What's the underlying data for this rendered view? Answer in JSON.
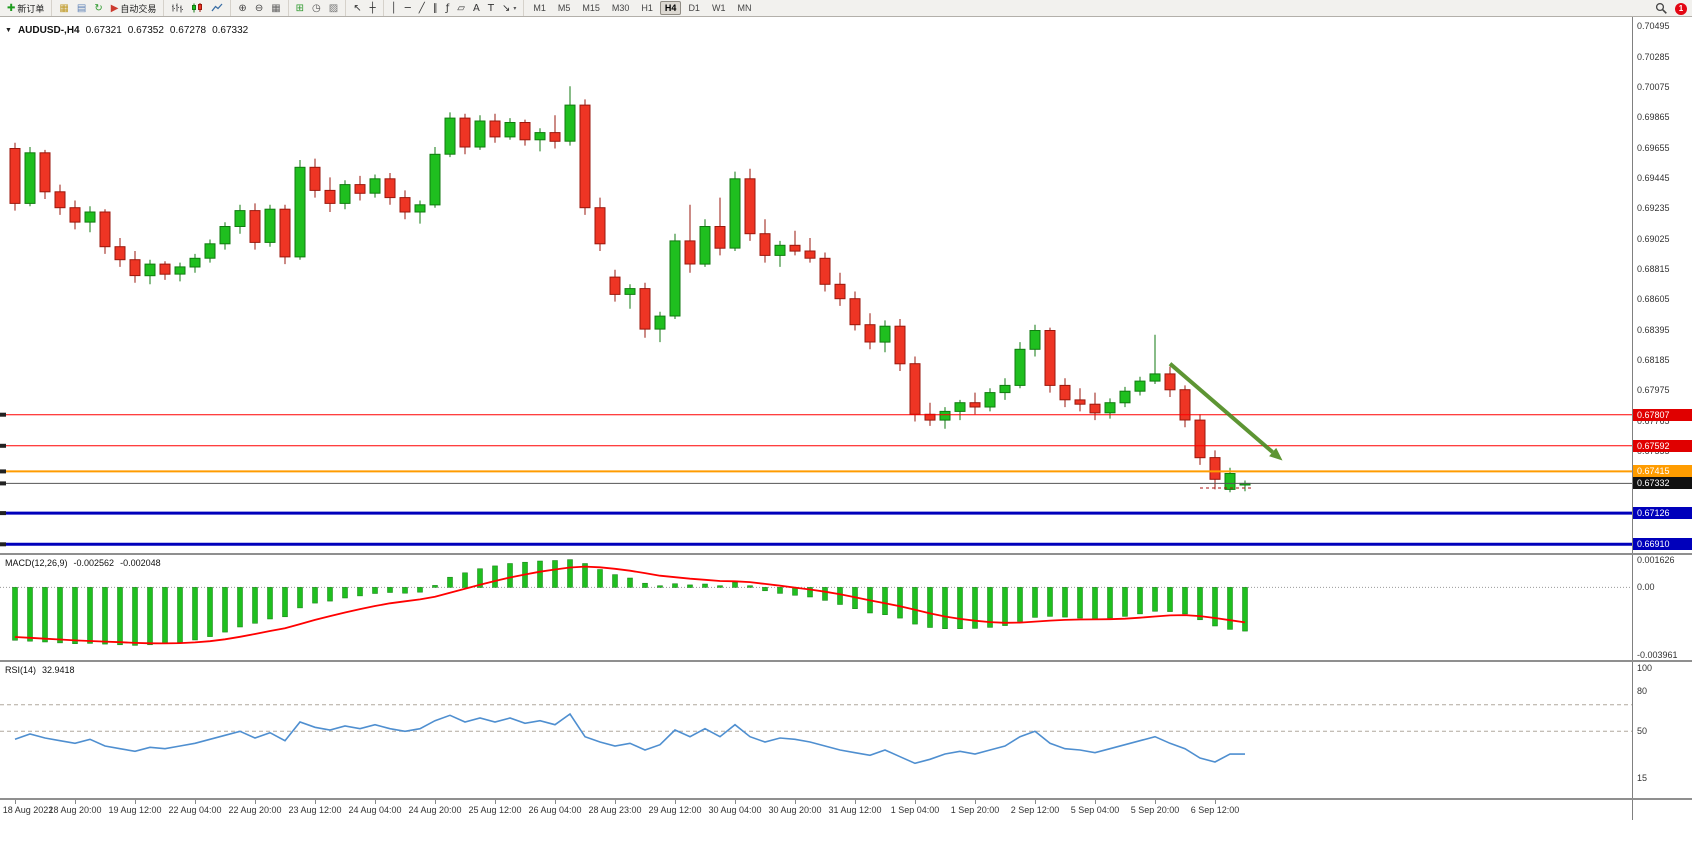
{
  "symbol_header": {
    "symbol": "AUDUSD-,H4",
    "open": "0.67321",
    "high": "0.67352",
    "low": "0.67278",
    "close": "0.67332"
  },
  "toolbar": {
    "badge": "1",
    "timeframes": [
      {
        "label": "M1",
        "active": false
      },
      {
        "label": "M5",
        "active": false
      },
      {
        "label": "M15",
        "active": false
      },
      {
        "label": "M30",
        "active": false
      },
      {
        "label": "H1",
        "active": false
      },
      {
        "label": "H4",
        "active": true
      },
      {
        "label": "D1",
        "active": false
      },
      {
        "label": "W1",
        "active": false
      },
      {
        "label": "MN",
        "active": false
      }
    ],
    "groups": [
      {
        "items": [
          {
            "name": "new-order",
            "glyph": "✚",
            "glyph_color": "#1d9b1d",
            "label": "新订单"
          }
        ]
      },
      {
        "items": [
          {
            "name": "charts",
            "glyph": "▦",
            "glyph_color": "#c09a27"
          },
          {
            "name": "profiles",
            "glyph": "▤",
            "glyph_color": "#5b7fb5"
          },
          {
            "name": "refresh",
            "glyph": "↻",
            "glyph_color": "#2f9a2f"
          },
          {
            "name": "autotrade",
            "glyph": "▶",
            "glyph_color": "#cc3b2f",
            "label": "自动交易"
          }
        ]
      },
      {
        "items": [
          {
            "name": "bar-chart-mode",
            "icon": "bars"
          },
          {
            "name": "candlestick-mode",
            "icon": "candles"
          },
          {
            "name": "line-chart-mode",
            "icon": "line"
          }
        ]
      },
      {
        "items": [
          {
            "name": "zoom-in",
            "glyph": "⊕",
            "glyph_color": "#444444"
          },
          {
            "name": "zoom-out",
            "glyph": "⊖",
            "glyph_color": "#444444"
          },
          {
            "name": "tile-windows",
            "glyph": "▦",
            "glyph_color": "#666666"
          }
        ]
      },
      {
        "items": [
          {
            "name": "indicators",
            "glyph": "⊞",
            "glyph_color": "#2f9a2f"
          },
          {
            "name": "periods",
            "glyph": "◷",
            "glyph_color": "#555555"
          },
          {
            "name": "templates",
            "glyph": "▨",
            "glyph_color": "#777777"
          }
        ]
      },
      {
        "items": [
          {
            "name": "cursor",
            "glyph": "↖",
            "glyph_color": "#333333"
          },
          {
            "name": "crosshair",
            "glyph": "┼",
            "glyph_color": "#333333"
          }
        ]
      },
      {
        "items": [
          {
            "name": "vertical-line",
            "glyph": "│",
            "glyph_color": "#333333"
          },
          {
            "name": "horizontal-line",
            "glyph": "─",
            "glyph_color": "#333333"
          },
          {
            "name": "trendline",
            "glyph": "╱",
            "glyph_color": "#333333"
          },
          {
            "name": "channel",
            "glyph": "∥",
            "glyph_color": "#333333"
          },
          {
            "name": "fibonacci",
            "glyph": "ƒ",
            "glyph_color": "#333333"
          },
          {
            "name": "shapes",
            "glyph": "▱",
            "glyph_color": "#333333"
          },
          {
            "name": "text",
            "glyph": "A",
            "glyph_color": "#333333"
          },
          {
            "name": "text-label",
            "glyph": "T",
            "glyph_color": "#333333"
          },
          {
            "name": "arrows-tool",
            "glyph": "↘",
            "glyph_color": "#333333",
            "caret": true
          }
        ]
      }
    ]
  },
  "colors": {
    "bull": "#1fbf1f",
    "bull_dark": "#117a11",
    "bear": "#ee3524",
    "bear_dark": "#9a170c",
    "macd_hist": "#1fbf1f",
    "macd_signal": "#ff0000",
    "rsi_line": "#4f8fd0",
    "level_red": "#ff0000",
    "level_orange": "#ff9c00",
    "level_blue": "#0000bb",
    "current_black": "#111111"
  },
  "chart_data": [
    {
      "type": "candlestick",
      "title": "AUDUSD-,H4",
      "ylim": [
        0.6685,
        0.7056
      ],
      "y_ticks": [
        0.70495,
        0.70285,
        0.70075,
        0.69865,
        0.69655,
        0.69445,
        0.69235,
        0.69025,
        0.68815,
        0.68605,
        0.68395,
        0.68185,
        0.67975,
        0.67765,
        0.67555
      ],
      "x_labels": [
        "18 Aug 2022",
        "18 Aug 20:00",
        "19 Aug 12:00",
        "22 Aug 04:00",
        "22 Aug 20:00",
        "23 Aug 12:00",
        "24 Aug 04:00",
        "24 Aug 20:00",
        "25 Aug 12:00",
        "26 Aug 04:00",
        "28 Aug 23:00",
        "29 Aug 12:00",
        "30 Aug 04:00",
        "30 Aug 20:00",
        "31 Aug 12:00",
        "1 Sep 04:00",
        "1 Sep 20:00",
        "2 Sep 12:00",
        "5 Sep 04:00",
        "5 Sep 20:00",
        "6 Sep 12:00"
      ],
      "candles": [
        [
          0.6965,
          0.6969,
          0.6922,
          0.6927
        ],
        [
          0.6927,
          0.6966,
          0.6925,
          0.6962
        ],
        [
          0.6962,
          0.6964,
          0.693,
          0.6935
        ],
        [
          0.6935,
          0.694,
          0.6919,
          0.6924
        ],
        [
          0.6924,
          0.6929,
          0.6909,
          0.6914
        ],
        [
          0.6914,
          0.6925,
          0.6907,
          0.6921
        ],
        [
          0.6921,
          0.6923,
          0.6892,
          0.6897
        ],
        [
          0.6897,
          0.6903,
          0.6883,
          0.6888
        ],
        [
          0.6888,
          0.6894,
          0.6872,
          0.6877
        ],
        [
          0.6877,
          0.6888,
          0.6871,
          0.6885
        ],
        [
          0.6885,
          0.6887,
          0.6874,
          0.6878
        ],
        [
          0.6878,
          0.6886,
          0.6873,
          0.6883
        ],
        [
          0.6883,
          0.6892,
          0.6879,
          0.6889
        ],
        [
          0.6889,
          0.6902,
          0.6886,
          0.6899
        ],
        [
          0.6899,
          0.6914,
          0.6895,
          0.6911
        ],
        [
          0.6911,
          0.6926,
          0.6906,
          0.6922
        ],
        [
          0.6922,
          0.6927,
          0.6895,
          0.69
        ],
        [
          0.69,
          0.6926,
          0.6897,
          0.6923
        ],
        [
          0.6923,
          0.6926,
          0.6885,
          0.689
        ],
        [
          0.689,
          0.6957,
          0.6888,
          0.6952
        ],
        [
          0.6952,
          0.6958,
          0.6931,
          0.6936
        ],
        [
          0.6936,
          0.6945,
          0.6921,
          0.6927
        ],
        [
          0.6927,
          0.6943,
          0.6923,
          0.694
        ],
        [
          0.694,
          0.6946,
          0.6929,
          0.6934
        ],
        [
          0.6934,
          0.6947,
          0.6931,
          0.6944
        ],
        [
          0.6944,
          0.6948,
          0.6926,
          0.6931
        ],
        [
          0.6931,
          0.6936,
          0.6916,
          0.6921
        ],
        [
          0.6921,
          0.6929,
          0.6913,
          0.6926
        ],
        [
          0.6926,
          0.6966,
          0.6924,
          0.6961
        ],
        [
          0.6961,
          0.699,
          0.6959,
          0.6986
        ],
        [
          0.6986,
          0.6989,
          0.6961,
          0.6966
        ],
        [
          0.6966,
          0.6988,
          0.6964,
          0.6984
        ],
        [
          0.6984,
          0.6989,
          0.6969,
          0.6973
        ],
        [
          0.6973,
          0.6986,
          0.6971,
          0.6983
        ],
        [
          0.6983,
          0.6985,
          0.6967,
          0.6971
        ],
        [
          0.6971,
          0.6979,
          0.6963,
          0.6976
        ],
        [
          0.6976,
          0.6988,
          0.6965,
          0.697
        ],
        [
          0.697,
          0.7008,
          0.6967,
          0.6995
        ],
        [
          0.6995,
          0.6999,
          0.6919,
          0.6924
        ],
        [
          0.6924,
          0.6931,
          0.6894,
          0.6899
        ],
        [
          0.6876,
          0.6881,
          0.6859,
          0.6864
        ],
        [
          0.6864,
          0.6871,
          0.6854,
          0.6868
        ],
        [
          0.6868,
          0.6872,
          0.6834,
          0.684
        ],
        [
          0.684,
          0.6852,
          0.6831,
          0.6849
        ],
        [
          0.6849,
          0.6906,
          0.6847,
          0.6901
        ],
        [
          0.6901,
          0.6926,
          0.6879,
          0.6885
        ],
        [
          0.6885,
          0.6916,
          0.6883,
          0.6911
        ],
        [
          0.6911,
          0.6931,
          0.6891,
          0.6896
        ],
        [
          0.6896,
          0.6949,
          0.6894,
          0.6944
        ],
        [
          0.6944,
          0.6951,
          0.6901,
          0.6906
        ],
        [
          0.6906,
          0.6916,
          0.6886,
          0.6891
        ],
        [
          0.6891,
          0.6901,
          0.6883,
          0.6898
        ],
        [
          0.6898,
          0.6908,
          0.6891,
          0.6894
        ],
        [
          0.6894,
          0.6903,
          0.6886,
          0.6889
        ],
        [
          0.6889,
          0.6893,
          0.6866,
          0.6871
        ],
        [
          0.6871,
          0.6879,
          0.6856,
          0.6861
        ],
        [
          0.6861,
          0.6866,
          0.6839,
          0.6843
        ],
        [
          0.6843,
          0.6851,
          0.6826,
          0.6831
        ],
        [
          0.6831,
          0.6846,
          0.6824,
          0.6842
        ],
        [
          0.6842,
          0.6847,
          0.6811,
          0.6816
        ],
        [
          0.6816,
          0.6821,
          0.6776,
          0.6781
        ],
        [
          0.6781,
          0.6789,
          0.6773,
          0.6777
        ],
        [
          0.6777,
          0.6786,
          0.6771,
          0.6783
        ],
        [
          0.6783,
          0.6791,
          0.6777,
          0.6789
        ],
        [
          0.6789,
          0.6796,
          0.6781,
          0.6786
        ],
        [
          0.6786,
          0.6799,
          0.6783,
          0.6796
        ],
        [
          0.6796,
          0.6806,
          0.6791,
          0.6801
        ],
        [
          0.6801,
          0.6831,
          0.6799,
          0.6826
        ],
        [
          0.6826,
          0.6843,
          0.6821,
          0.6839
        ],
        [
          0.6839,
          0.6841,
          0.6796,
          0.6801
        ],
        [
          0.6801,
          0.6806,
          0.6786,
          0.6791
        ],
        [
          0.6791,
          0.6799,
          0.6783,
          0.6788
        ],
        [
          0.6788,
          0.6796,
          0.6777,
          0.6782
        ],
        [
          0.6782,
          0.6792,
          0.6778,
          0.6789
        ],
        [
          0.6789,
          0.68,
          0.6786,
          0.6797
        ],
        [
          0.6797,
          0.6807,
          0.6794,
          0.6804
        ],
        [
          0.6804,
          0.6836,
          0.6802,
          0.6809
        ],
        [
          0.6809,
          0.6814,
          0.6793,
          0.6798
        ],
        [
          0.6798,
          0.6801,
          0.6772,
          0.6777
        ],
        [
          0.6777,
          0.6781,
          0.6746,
          0.6751
        ],
        [
          0.6751,
          0.6756,
          0.6729,
          0.6736
        ],
        [
          0.6729,
          0.6744,
          0.6727,
          0.674
        ],
        [
          0.67321,
          0.67352,
          0.67278,
          0.67332
        ]
      ],
      "hlines": [
        {
          "price": 0.67807,
          "label": "0.67807",
          "line_color": "#ff0000",
          "tag_color": "#e00000",
          "width": 1
        },
        {
          "price": 0.67592,
          "label": "0.67592",
          "line_color": "#ff0000",
          "tag_color": "#e00000",
          "width": 1
        },
        {
          "price": 0.67415,
          "label": "0.67415",
          "line_color": "#ff9c00",
          "tag_color": "#ff9c00",
          "width": 2
        },
        {
          "price": 0.67332,
          "label": "0.67332",
          "line_color": "#555555",
          "tag_color": "#111111",
          "width": 1
        },
        {
          "price": 0.67126,
          "label": "0.67126",
          "line_color": "#0000bb",
          "tag_color": "#0000bb",
          "width": 3
        },
        {
          "price": 0.6691,
          "label": "0.66910",
          "line_color": "#0000bb",
          "tag_color": "#0000bb",
          "width": 3
        }
      ],
      "arrow": {
        "from_bar": 77,
        "from_price": 0.6816,
        "to_bar": 84.5,
        "to_price": 0.6749,
        "color": "#4c8a1e"
      },
      "dashed_segment": {
        "from_bar": 79,
        "to_bar": 82.5,
        "price": 0.673,
        "color": "#aa1111"
      }
    },
    {
      "type": "macd",
      "title": "MACD(12,26,9)",
      "value": "-0.002562",
      "signal_value": "-0.002048",
      "ylim": [
        -0.00425,
        0.0019
      ],
      "y_ticks": [
        {
          "v": 0.001626,
          "label": "0.001626"
        },
        {
          "v": 0,
          "label": "0.00"
        },
        {
          "v": -0.003961,
          "label": "-0.003961"
        }
      ],
      "histogram": [
        -0.0031,
        -0.00315,
        -0.0032,
        -0.00325,
        -0.0033,
        -0.00328,
        -0.00332,
        -0.00336,
        -0.0034,
        -0.00336,
        -0.0033,
        -0.00322,
        -0.00308,
        -0.00288,
        -0.00262,
        -0.00232,
        -0.0021,
        -0.00185,
        -0.00172,
        -0.0012,
        -0.00092,
        -0.0008,
        -0.00062,
        -0.0005,
        -0.00036,
        -0.0003,
        -0.00034,
        -0.00028,
        0.00012,
        0.0006,
        0.00086,
        0.0011,
        0.00126,
        0.0014,
        0.00148,
        0.00155,
        0.00158,
        0.00163,
        0.0014,
        0.00105,
        0.00075,
        0.00055,
        0.00025,
        0.0001,
        0.00022,
        0.00015,
        0.0002,
        0.0001,
        0.0003,
        0.0001,
        -0.0002,
        -0.00035,
        -0.00046,
        -0.00056,
        -0.00076,
        -0.001,
        -0.00125,
        -0.0015,
        -0.0016,
        -0.0018,
        -0.00215,
        -0.00235,
        -0.00242,
        -0.00242,
        -0.0024,
        -0.00234,
        -0.00224,
        -0.002,
        -0.00176,
        -0.0017,
        -0.00174,
        -0.0018,
        -0.00185,
        -0.0018,
        -0.0017,
        -0.00155,
        -0.0014,
        -0.00142,
        -0.00156,
        -0.0019,
        -0.00226,
        -0.00246,
        -0.00256
      ],
      "signal": [
        -0.0029,
        -0.00295,
        -0.003,
        -0.00305,
        -0.0031,
        -0.00314,
        -0.00317,
        -0.00321,
        -0.00325,
        -0.00327,
        -0.00328,
        -0.00326,
        -0.00322,
        -0.00315,
        -0.00304,
        -0.00289,
        -0.00273,
        -0.00255,
        -0.00239,
        -0.00215,
        -0.0019,
        -0.00168,
        -0.00147,
        -0.00127,
        -0.00109,
        -0.00093,
        -0.00081,
        -0.0007,
        -0.00054,
        -0.00031,
        -8e-05,
        0.00016,
        0.00038,
        0.00058,
        0.00076,
        0.00092,
        0.00105,
        0.00117,
        0.00122,
        0.00118,
        0.00109,
        0.00098,
        0.00084,
        0.00069,
        0.0006,
        0.00051,
        0.00045,
        0.00038,
        0.00036,
        0.00031,
        0.00021,
        0.0001,
        -1e-05,
        -0.00012,
        -0.00025,
        -0.0004,
        -0.00057,
        -0.00076,
        -0.00093,
        -0.0011,
        -0.00131,
        -0.00152,
        -0.0017,
        -0.00184,
        -0.00195,
        -0.00203,
        -0.00207,
        -0.00206,
        -0.002,
        -0.00194,
        -0.0019,
        -0.00188,
        -0.00187,
        -0.00186,
        -0.00183,
        -0.00177,
        -0.0017,
        -0.00164,
        -0.00162,
        -0.00168,
        -0.00179,
        -0.00192,
        -0.00205
      ]
    },
    {
      "type": "rsi",
      "title": "RSI(14)",
      "value": "32.9418",
      "ylim": [
        0,
        102
      ],
      "levels": [
        70,
        50
      ],
      "y_ticks": [
        100,
        80,
        50,
        15
      ],
      "values": [
        44,
        48,
        45,
        43,
        41,
        44,
        39,
        37,
        35,
        38,
        37,
        39,
        41,
        44,
        47,
        50,
        45,
        49,
        43,
        57,
        53,
        51,
        54,
        52,
        55,
        52,
        50,
        52,
        58,
        62,
        57,
        60,
        57,
        60,
        56,
        58,
        55,
        63,
        46,
        42,
        39,
        41,
        36,
        40,
        51,
        46,
        52,
        46,
        55,
        46,
        42,
        45,
        44,
        42,
        39,
        36,
        34,
        32,
        36,
        31,
        26,
        29,
        33,
        35,
        33,
        36,
        39,
        46,
        50,
        41,
        37,
        36,
        34,
        37,
        40,
        43,
        46,
        41,
        37,
        30,
        27,
        33,
        32.94
      ]
    }
  ]
}
